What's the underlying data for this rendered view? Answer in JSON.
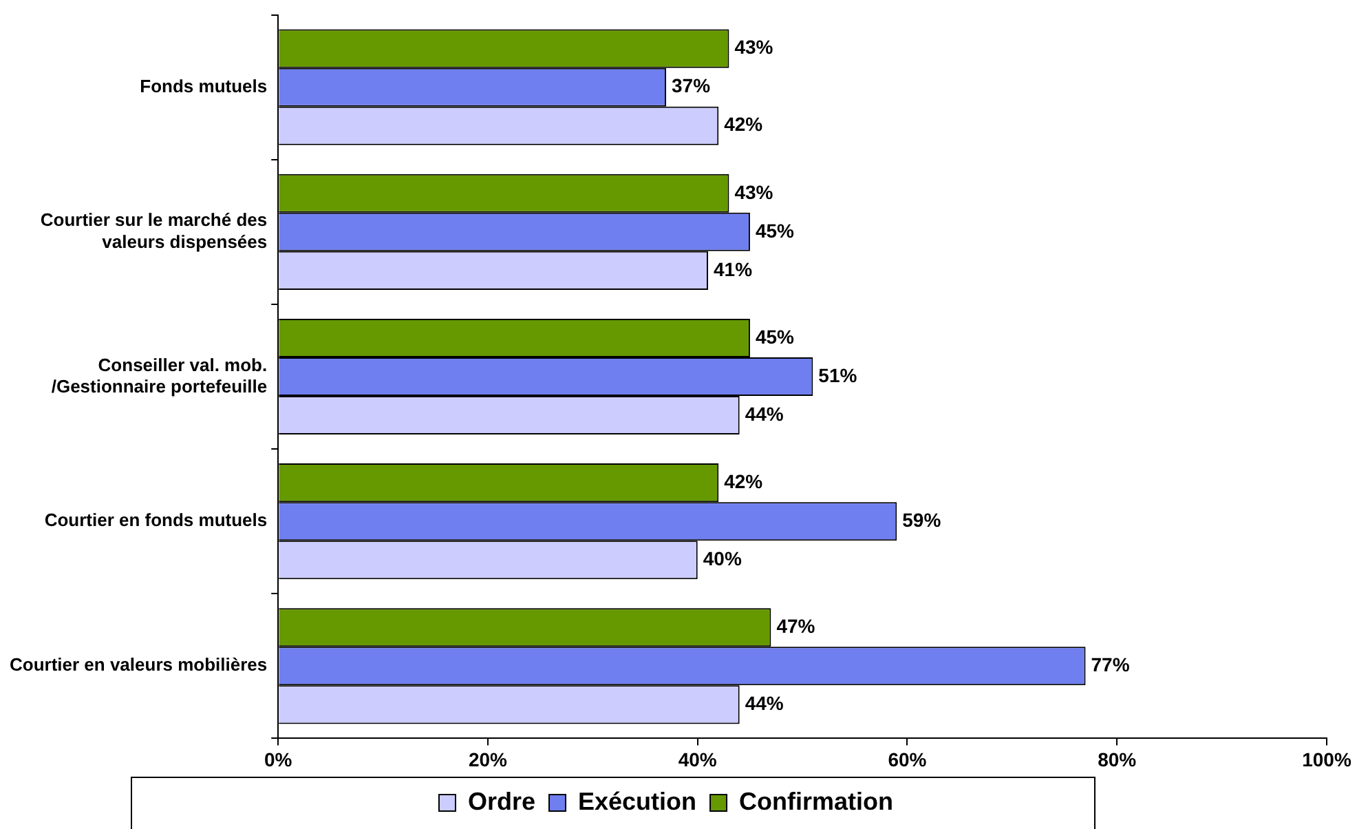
{
  "chart_data": {
    "type": "bar",
    "orientation": "horizontal",
    "categories": [
      "Fonds mutuels",
      "Courtier sur le marché des valeurs dispensées",
      "Conseiller val. mob. /Gestionnaire portefeuille",
      "Courtier en fonds mutuels",
      "Courtier en valeurs mobilières"
    ],
    "series": [
      {
        "name": "Ordre",
        "color": "#ccccff",
        "values": [
          42,
          41,
          44,
          40,
          44
        ],
        "value_labels": [
          "42%",
          "41%",
          "44%",
          "40%",
          "44%"
        ]
      },
      {
        "name": "Exécution",
        "color": "#6f7fef",
        "values": [
          37,
          45,
          51,
          59,
          77
        ],
        "value_labels": [
          "37%",
          "45%",
          "51%",
          "59%",
          "77%"
        ]
      },
      {
        "name": "Confirmation",
        "color": "#669900",
        "values": [
          43,
          43,
          45,
          42,
          47
        ],
        "value_labels": [
          "43%",
          "43%",
          "45%",
          "42%",
          "47%"
        ]
      }
    ],
    "xlim": [
      0,
      100
    ],
    "xticks": [
      {
        "value": 0,
        "label": "0%"
      },
      {
        "value": 20,
        "label": "20%"
      },
      {
        "value": 40,
        "label": "40%"
      },
      {
        "value": 60,
        "label": "60%"
      },
      {
        "value": 80,
        "label": "80%"
      },
      {
        "value": 100,
        "label": "100%"
      }
    ],
    "grid": false,
    "legend": "bottom"
  }
}
